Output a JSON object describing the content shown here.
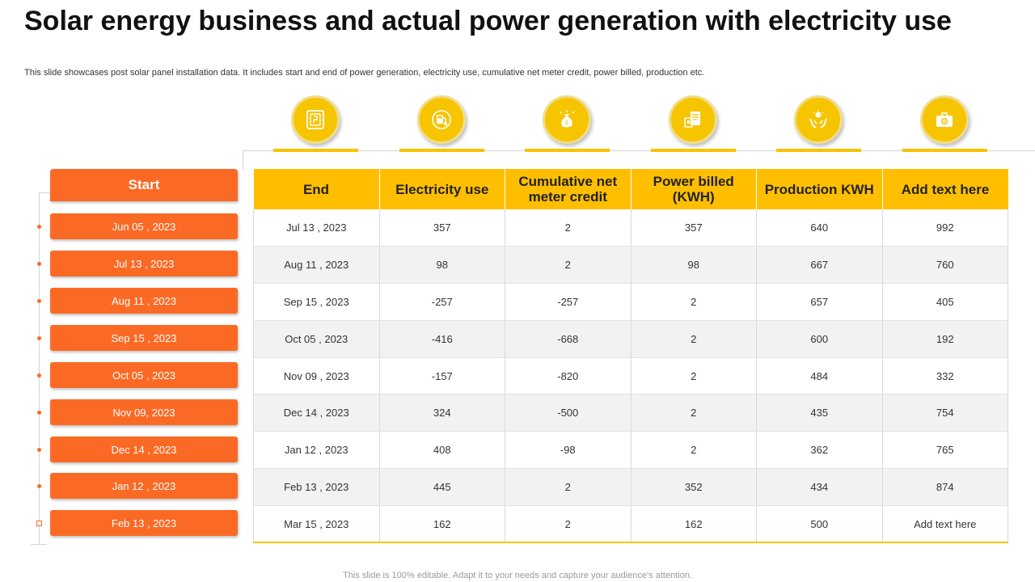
{
  "title": "Solar energy business and actual power generation with electricity use",
  "subtitle": "This slide showcases post solar panel installation data. It includes start and end of power generation, electricity use, cumulative net meter credit, power billed, production etc.",
  "icons": [
    "solar-panel-icon",
    "fuel-station-icon",
    "money-bag-icon",
    "meter-bill-icon",
    "hands-energy-icon",
    "briefcase-gear-icon"
  ],
  "start": {
    "header": "Start",
    "dates": [
      "Jun 05 , 2023",
      "Jul 13 , 2023",
      "Aug 11 , 2023",
      "Sep 15 , 2023",
      "Oct 05 , 2023",
      "Nov 09, 2023",
      "Dec 14 , 2023",
      "Jan 12 , 2023",
      "Feb 13 , 2023"
    ]
  },
  "table": {
    "headers": [
      "End",
      "Electricity use",
      "Cumulative net meter credit",
      "Power billed (KWH)",
      "Production KWH",
      "Add text here"
    ],
    "rows": [
      [
        "Jul 13 , 2023",
        "357",
        "2",
        "357",
        "640",
        "992"
      ],
      [
        "Aug 11 , 2023",
        "98",
        "2",
        "98",
        "667",
        "760"
      ],
      [
        "Sep 15 , 2023",
        "-257",
        "-257",
        "2",
        "657",
        "405"
      ],
      [
        "Oct 05 , 2023",
        "-416",
        "-668",
        "2",
        "600",
        "192"
      ],
      [
        "Nov 09 , 2023",
        "-157",
        "-820",
        "2",
        "484",
        "332"
      ],
      [
        "Dec 14 , 2023",
        "324",
        "-500",
        "2",
        "435",
        "754"
      ],
      [
        "Jan 12 , 2023",
        "408",
        "-98",
        "2",
        "362",
        "765"
      ],
      [
        "Feb 13 , 2023",
        "445",
        "2",
        "352",
        "434",
        "874"
      ],
      [
        "Mar 15 , 2023",
        "162",
        "2",
        "162",
        "500",
        "Add text here"
      ]
    ]
  },
  "footer": "This slide is 100% editable. Adapt it to your needs and capture your audience's attention.",
  "colors": {
    "accent_orange": "#fb6a25",
    "accent_yellow": "#ffbf00"
  }
}
